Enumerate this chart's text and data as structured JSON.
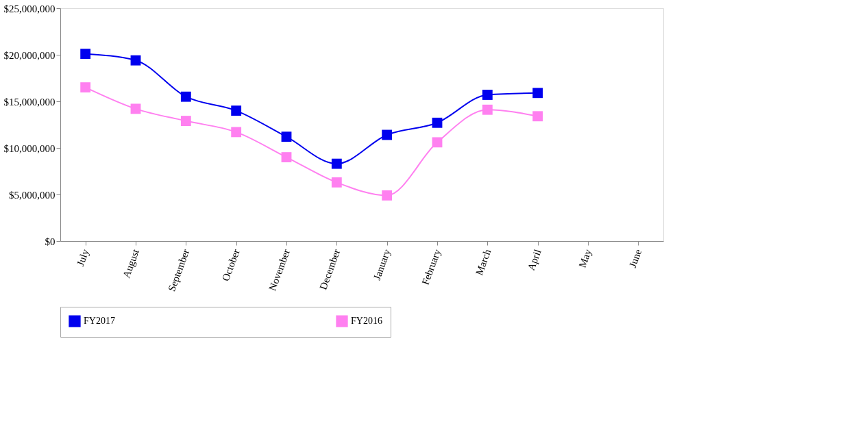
{
  "chart_data": {
    "type": "line",
    "categories": [
      "July",
      "August",
      "September",
      "October",
      "November",
      "December",
      "January",
      "February",
      "March",
      "April",
      "May",
      "June"
    ],
    "series": [
      {
        "name": "FY2017",
        "color": "#0000ee",
        "values": [
          20100000,
          19400000,
          15500000,
          14000000,
          11200000,
          8300000,
          11400000,
          12700000,
          15700000,
          15900000,
          null,
          null
        ]
      },
      {
        "name": "FY2016",
        "color": "#ff80f0",
        "values": [
          16500000,
          14200000,
          12900000,
          11700000,
          9000000,
          6300000,
          4900000,
          10600000,
          14100000,
          13400000,
          null,
          null
        ]
      }
    ],
    "ylim": [
      0,
      25000000
    ],
    "yticks": [
      {
        "value": 0,
        "label": "$0"
      },
      {
        "value": 5000000,
        "label": "$5,000,000"
      },
      {
        "value": 10000000,
        "label": "$10,000,000"
      },
      {
        "value": 15000000,
        "label": "$15,000,000"
      },
      {
        "value": 20000000,
        "label": "$20,000,000"
      },
      {
        "value": 25000000,
        "label": "$25,000,000"
      }
    ],
    "grid": false,
    "legend": "bottom",
    "marker": "square",
    "line_style": "solid"
  }
}
